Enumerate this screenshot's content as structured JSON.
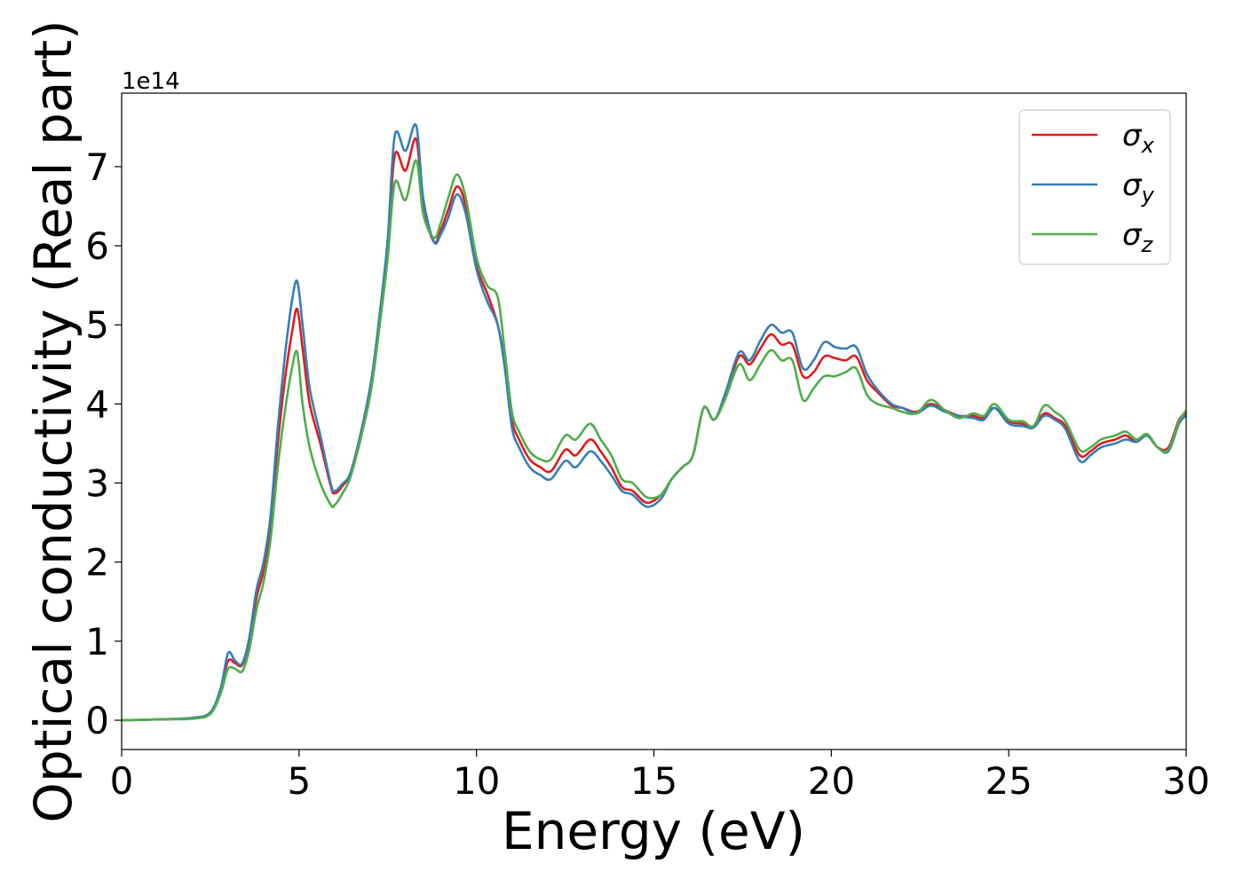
{
  "chart_data": {
    "type": "line",
    "title": "",
    "xlabel": "Energy (eV)",
    "ylabel": "Optical conductivity (Real part)",
    "offset_label": "1e14",
    "xlim": [
      0,
      30
    ],
    "ylim": [
      -0.37,
      7.93
    ],
    "xticks": [
      0,
      5,
      10,
      15,
      20,
      25,
      30
    ],
    "xtick_labels": [
      "0",
      "5",
      "10",
      "15",
      "20",
      "25",
      "30"
    ],
    "yticks": [
      0,
      1,
      2,
      3,
      4,
      5,
      6,
      7
    ],
    "ytick_labels": [
      "0",
      "1",
      "2",
      "3",
      "4",
      "5",
      "6",
      "7"
    ],
    "grid": false,
    "legend_position": "top-right",
    "series": [
      {
        "name": "σx",
        "name_base": "σ",
        "name_sub": "x",
        "color": "#e41a1c",
        "x": [
          0,
          1,
          2,
          2.5,
          2.8,
          3.0,
          3.2,
          3.4,
          3.6,
          3.8,
          4.0,
          4.2,
          4.4,
          4.6,
          4.8,
          4.95,
          5.1,
          5.3,
          5.6,
          5.9,
          6.0,
          6.2,
          6.5,
          7.0,
          7.3,
          7.5,
          7.7,
          8.0,
          8.3,
          8.5,
          8.8,
          9.0,
          9.2,
          9.45,
          9.7,
          10.0,
          10.3,
          10.6,
          10.8,
          11.0,
          11.2,
          11.5,
          11.8,
          12.1,
          12.5,
          12.8,
          13.2,
          13.5,
          13.8,
          14.1,
          14.4,
          14.8,
          15.2,
          15.5,
          15.8,
          16.1,
          16.4,
          16.7,
          17.0,
          17.4,
          17.7,
          18.0,
          18.3,
          18.6,
          18.9,
          19.2,
          19.5,
          19.8,
          20.1,
          20.4,
          20.7,
          21.0,
          21.3,
          21.7,
          22.0,
          22.4,
          22.8,
          23.2,
          23.6,
          24.0,
          24.3,
          24.6,
          25.0,
          25.4,
          25.7,
          26.0,
          26.3,
          26.6,
          27.0,
          27.3,
          27.6,
          28.0,
          28.3,
          28.6,
          28.9,
          29.2,
          29.5,
          29.8,
          30.0
        ],
        "y": [
          0,
          0.01,
          0.03,
          0.1,
          0.4,
          0.75,
          0.72,
          0.7,
          1.0,
          1.55,
          1.9,
          2.5,
          3.5,
          4.3,
          4.9,
          5.2,
          4.7,
          4.0,
          3.5,
          2.95,
          2.87,
          2.95,
          3.2,
          4.2,
          5.2,
          6.0,
          7.15,
          6.95,
          7.35,
          6.5,
          6.05,
          6.2,
          6.45,
          6.75,
          6.5,
          5.75,
          5.4,
          5.0,
          4.5,
          3.8,
          3.55,
          3.3,
          3.2,
          3.15,
          3.42,
          3.35,
          3.55,
          3.4,
          3.2,
          2.95,
          2.9,
          2.75,
          2.85,
          3.05,
          3.2,
          3.35,
          3.95,
          3.8,
          4.1,
          4.6,
          4.5,
          4.7,
          4.88,
          4.75,
          4.75,
          4.35,
          4.4,
          4.6,
          4.58,
          4.55,
          4.6,
          4.3,
          4.15,
          3.98,
          3.95,
          3.9,
          4.0,
          3.92,
          3.85,
          3.85,
          3.82,
          3.95,
          3.78,
          3.75,
          3.72,
          3.88,
          3.82,
          3.72,
          3.35,
          3.4,
          3.5,
          3.55,
          3.6,
          3.52,
          3.6,
          3.45,
          3.45,
          3.8,
          3.88
        ]
      },
      {
        "name": "σy",
        "name_base": "σ",
        "name_sub": "y",
        "color": "#377eb8",
        "x": [
          0,
          1,
          2,
          2.5,
          2.8,
          3.0,
          3.2,
          3.4,
          3.6,
          3.8,
          4.0,
          4.2,
          4.4,
          4.6,
          4.8,
          4.95,
          5.1,
          5.3,
          5.6,
          5.9,
          6.0,
          6.2,
          6.5,
          7.0,
          7.3,
          7.5,
          7.7,
          8.0,
          8.3,
          8.5,
          8.8,
          9.0,
          9.2,
          9.45,
          9.7,
          10.0,
          10.3,
          10.6,
          10.8,
          11.0,
          11.2,
          11.5,
          11.8,
          12.1,
          12.5,
          12.8,
          13.2,
          13.5,
          13.8,
          14.1,
          14.4,
          14.8,
          15.2,
          15.5,
          15.8,
          16.1,
          16.4,
          16.7,
          17.0,
          17.4,
          17.7,
          18.0,
          18.3,
          18.6,
          18.9,
          19.2,
          19.5,
          19.8,
          20.1,
          20.4,
          20.7,
          21.0,
          21.3,
          21.7,
          22.0,
          22.4,
          22.8,
          23.2,
          23.6,
          24.0,
          24.3,
          24.6,
          25.0,
          25.4,
          25.7,
          26.0,
          26.3,
          26.6,
          27.0,
          27.3,
          27.6,
          28.0,
          28.3,
          28.6,
          28.9,
          29.2,
          29.5,
          29.8,
          30.0
        ],
        "y": [
          0,
          0.01,
          0.03,
          0.1,
          0.42,
          0.85,
          0.75,
          0.72,
          1.05,
          1.65,
          2.0,
          2.6,
          3.7,
          4.6,
          5.3,
          5.55,
          5.0,
          4.2,
          3.6,
          2.98,
          2.9,
          2.98,
          3.2,
          4.2,
          5.25,
          6.1,
          7.4,
          7.2,
          7.52,
          6.6,
          6.05,
          6.15,
          6.35,
          6.65,
          6.4,
          5.7,
          5.3,
          5.0,
          4.45,
          3.7,
          3.45,
          3.2,
          3.1,
          3.05,
          3.28,
          3.2,
          3.4,
          3.28,
          3.1,
          2.9,
          2.85,
          2.7,
          2.8,
          3.05,
          3.2,
          3.35,
          3.95,
          3.8,
          4.12,
          4.65,
          4.55,
          4.8,
          5.0,
          4.9,
          4.9,
          4.45,
          4.55,
          4.78,
          4.72,
          4.7,
          4.72,
          4.38,
          4.18,
          4.0,
          3.95,
          3.88,
          3.98,
          3.9,
          3.85,
          3.82,
          3.8,
          3.95,
          3.75,
          3.72,
          3.7,
          3.85,
          3.8,
          3.68,
          3.28,
          3.35,
          3.45,
          3.5,
          3.55,
          3.52,
          3.6,
          3.45,
          3.4,
          3.75,
          3.85
        ]
      },
      {
        "name": "σz",
        "name_base": "σ",
        "name_sub": "z",
        "color": "#4daf4a",
        "x": [
          0,
          1,
          2,
          2.5,
          2.8,
          3.0,
          3.2,
          3.4,
          3.6,
          3.8,
          4.0,
          4.2,
          4.4,
          4.6,
          4.8,
          4.95,
          5.1,
          5.3,
          5.6,
          5.9,
          6.0,
          6.2,
          6.5,
          7.0,
          7.3,
          7.5,
          7.7,
          8.0,
          8.3,
          8.5,
          8.8,
          9.0,
          9.2,
          9.45,
          9.7,
          10.0,
          10.3,
          10.6,
          10.8,
          11.0,
          11.2,
          11.5,
          11.8,
          12.1,
          12.5,
          12.8,
          13.2,
          13.5,
          13.8,
          14.1,
          14.4,
          14.8,
          15.2,
          15.5,
          15.8,
          16.1,
          16.4,
          16.7,
          17.0,
          17.4,
          17.7,
          18.0,
          18.3,
          18.6,
          18.9,
          19.2,
          19.5,
          19.8,
          20.1,
          20.4,
          20.7,
          21.0,
          21.3,
          21.7,
          22.0,
          22.4,
          22.8,
          23.2,
          23.6,
          24.0,
          24.3,
          24.6,
          25.0,
          25.4,
          25.7,
          26.0,
          26.3,
          26.6,
          27.0,
          27.3,
          27.6,
          28.0,
          28.3,
          28.6,
          28.9,
          29.2,
          29.5,
          29.8,
          30.0
        ],
        "y": [
          0,
          0.01,
          0.02,
          0.08,
          0.35,
          0.65,
          0.65,
          0.62,
          0.9,
          1.4,
          1.75,
          2.3,
          3.2,
          3.9,
          4.45,
          4.65,
          4.0,
          3.45,
          3.0,
          2.72,
          2.72,
          2.85,
          3.15,
          4.1,
          5.1,
          5.85,
          6.8,
          6.58,
          7.08,
          6.4,
          6.1,
          6.3,
          6.6,
          6.9,
          6.6,
          5.85,
          5.5,
          5.35,
          4.65,
          3.9,
          3.65,
          3.4,
          3.3,
          3.3,
          3.6,
          3.55,
          3.75,
          3.55,
          3.35,
          3.05,
          3.0,
          2.82,
          2.85,
          3.05,
          3.2,
          3.35,
          3.95,
          3.8,
          4.05,
          4.5,
          4.3,
          4.5,
          4.68,
          4.55,
          4.55,
          4.05,
          4.2,
          4.35,
          4.35,
          4.4,
          4.45,
          4.12,
          4.0,
          3.95,
          3.9,
          3.88,
          4.05,
          3.92,
          3.82,
          3.88,
          3.85,
          4.0,
          3.8,
          3.78,
          3.72,
          3.98,
          3.9,
          3.78,
          3.42,
          3.45,
          3.55,
          3.6,
          3.65,
          3.55,
          3.62,
          3.45,
          3.42,
          3.78,
          3.92
        ]
      }
    ]
  }
}
